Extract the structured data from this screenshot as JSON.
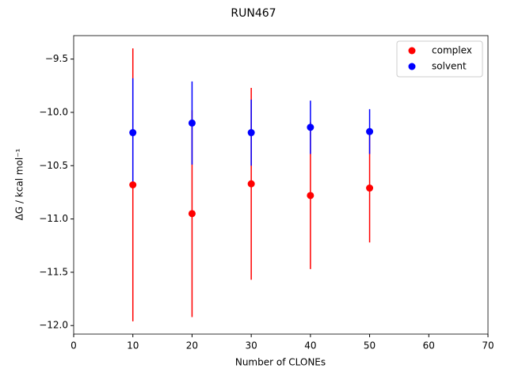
{
  "chart_data": {
    "type": "errorbar-scatter",
    "title": "RUN467",
    "x_label": "Number of CLONEs",
    "y_label": "ΔG / kcal mol⁻¹",
    "xlim": [
      0,
      70
    ],
    "xticks": [
      0,
      10,
      20,
      30,
      40,
      50,
      60,
      70
    ],
    "ylim": [
      -12.08,
      -9.28
    ],
    "yticks": [
      {
        "value": -12.0,
        "label": "−12.0"
      },
      {
        "value": -11.5,
        "label": "−11.5"
      },
      {
        "value": -11.0,
        "label": "−11.0"
      },
      {
        "value": -10.5,
        "label": "−10.5"
      },
      {
        "value": -10.0,
        "label": "−10.0"
      },
      {
        "value": -9.5,
        "label": "−9.5"
      }
    ],
    "legend": "upper right",
    "series": [
      {
        "name": "complex",
        "color": "#ff0000",
        "x": [
          10,
          20,
          30,
          40,
          50
        ],
        "values": [
          -10.68,
          -10.95,
          -10.67,
          -10.78,
          -10.71
        ],
        "errors": [
          1.28,
          0.97,
          0.9,
          0.69,
          0.51
        ]
      },
      {
        "name": "solvent",
        "color": "#0000ff",
        "x": [
          10,
          20,
          30,
          40,
          50
        ],
        "values": [
          -10.19,
          -10.1,
          -10.19,
          -10.14,
          -10.18
        ],
        "errors": [
          0.51,
          0.39,
          0.31,
          0.25,
          0.21
        ]
      }
    ]
  }
}
